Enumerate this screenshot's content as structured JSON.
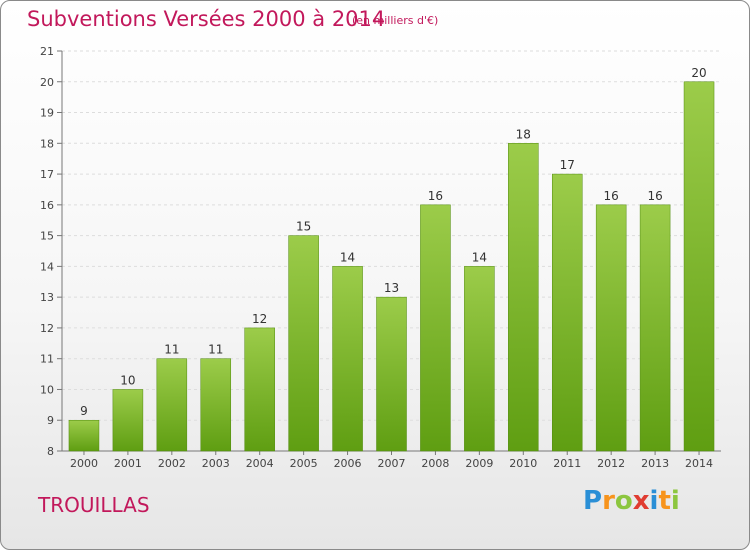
{
  "header": {
    "title": "Subventions Versées 2000 à 2014",
    "subtitle": "(en milliers d'€)"
  },
  "footer": {
    "place": "TROUILLAS",
    "logo_letters": [
      "P",
      "r",
      "o",
      "x",
      "i",
      "t",
      "i"
    ],
    "logo_colors": [
      "#2a8fd6",
      "#f7941d",
      "#8cc63f",
      "#e03c31",
      "#2a8fd6",
      "#f7941d",
      "#8cc63f"
    ]
  },
  "chart_data": {
    "type": "bar",
    "categories": [
      "2000",
      "2001",
      "2002",
      "2003",
      "2004",
      "2005",
      "2006",
      "2007",
      "2008",
      "2009",
      "2010",
      "2011",
      "2012",
      "2013",
      "2014"
    ],
    "values": [
      9,
      10,
      11,
      11,
      12,
      15,
      14,
      13,
      16,
      14,
      18,
      17,
      16,
      16,
      20
    ],
    "title": "Subventions Versées 2000 à 2014",
    "ylim": [
      8,
      21
    ],
    "yticks": [
      8,
      9,
      10,
      11,
      12,
      13,
      14,
      15,
      16,
      17,
      18,
      19,
      20,
      21
    ],
    "grid": true,
    "bar_color_top": "#9ccc4a",
    "bar_color_bottom": "#5f9e12"
  }
}
